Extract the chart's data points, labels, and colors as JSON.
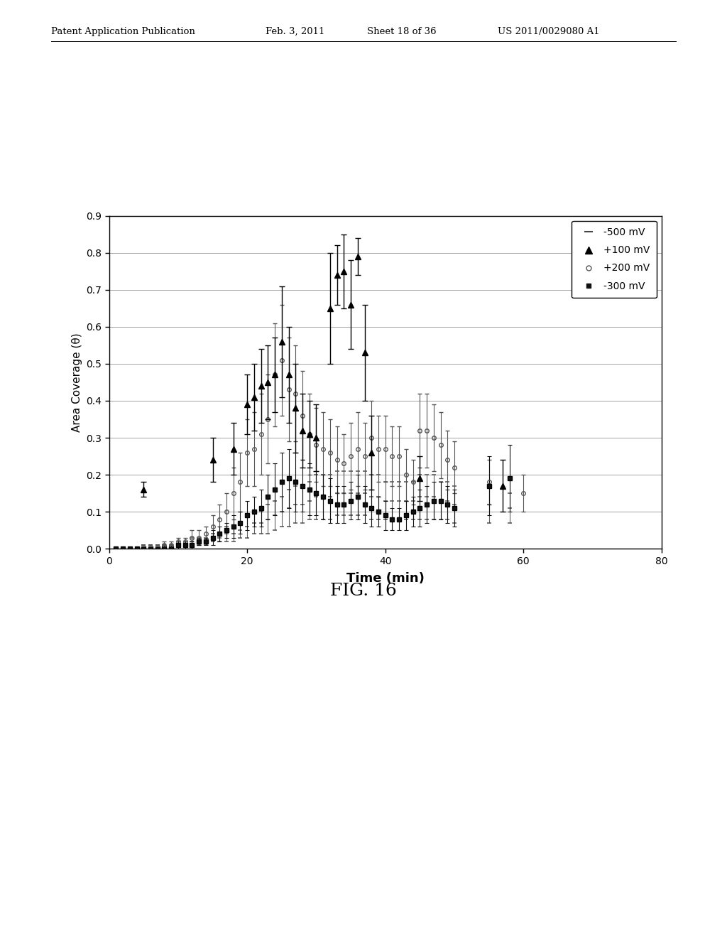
{
  "fig_label": "FIG. 16",
  "xlabel": "Time (min)",
  "ylabel": "Area Coverage (θ)",
  "xlim": [
    0,
    80
  ],
  "ylim": [
    0,
    0.9
  ],
  "yticks": [
    0,
    0.1,
    0.2,
    0.3,
    0.4,
    0.5,
    0.6,
    0.7,
    0.8,
    0.9
  ],
  "xticks": [
    0,
    20,
    40,
    60,
    80
  ],
  "background_color": "#ffffff",
  "header_left": "Patent Application Publication",
  "header_mid1": "Feb. 3, 2011",
  "header_mid2": "Sheet 18 of 36",
  "header_right": "US 2011/0029080 A1",
  "series_500mV": {
    "label": "-500 mV",
    "x": [
      1,
      2,
      3,
      4,
      5,
      6,
      7,
      8,
      9,
      10,
      11,
      12,
      13,
      14,
      15,
      16,
      17,
      18,
      19,
      20,
      21,
      22,
      23,
      24,
      25,
      26,
      27,
      28,
      29,
      30,
      31,
      32,
      33,
      34,
      35,
      36,
      37,
      38,
      39,
      40,
      41,
      42,
      43,
      44,
      45,
      46,
      47,
      48,
      49,
      50,
      55,
      58
    ],
    "y": [
      0.0,
      0.0,
      0.0,
      0.0,
      0.01,
      0.01,
      0.01,
      0.01,
      0.01,
      0.01,
      0.01,
      0.02,
      0.02,
      0.02,
      0.03,
      0.03,
      0.04,
      0.04,
      0.05,
      0.06,
      0.07,
      0.07,
      0.08,
      0.09,
      0.1,
      0.11,
      0.12,
      0.12,
      0.13,
      0.14,
      0.14,
      0.14,
      0.15,
      0.15,
      0.15,
      0.15,
      0.15,
      0.14,
      0.14,
      0.13,
      0.13,
      0.13,
      0.13,
      0.13,
      0.14,
      0.14,
      0.14,
      0.13,
      0.13,
      0.12,
      0.12,
      0.11
    ],
    "yerr": [
      0.0,
      0.0,
      0.0,
      0.0,
      0.0,
      0.0,
      0.0,
      0.0,
      0.0,
      0.0,
      0.0,
      0.01,
      0.01,
      0.01,
      0.01,
      0.01,
      0.02,
      0.02,
      0.02,
      0.03,
      0.03,
      0.03,
      0.04,
      0.04,
      0.04,
      0.05,
      0.05,
      0.05,
      0.05,
      0.06,
      0.06,
      0.06,
      0.06,
      0.06,
      0.06,
      0.06,
      0.06,
      0.06,
      0.06,
      0.05,
      0.05,
      0.05,
      0.05,
      0.05,
      0.06,
      0.06,
      0.06,
      0.05,
      0.05,
      0.05,
      0.05,
      0.04
    ]
  },
  "series_100mV": {
    "label": "+100 mV",
    "x": [
      5,
      15,
      18,
      20,
      21,
      22,
      23,
      24,
      25,
      26,
      27,
      28,
      29,
      30,
      32,
      33,
      34,
      35,
      36,
      37,
      38,
      45,
      57
    ],
    "y": [
      0.16,
      0.24,
      0.27,
      0.39,
      0.41,
      0.44,
      0.45,
      0.47,
      0.56,
      0.47,
      0.38,
      0.32,
      0.31,
      0.3,
      0.65,
      0.74,
      0.75,
      0.66,
      0.79,
      0.53,
      0.26,
      0.19,
      0.17
    ],
    "yerr": [
      0.02,
      0.06,
      0.07,
      0.08,
      0.09,
      0.1,
      0.1,
      0.1,
      0.15,
      0.13,
      0.12,
      0.1,
      0.09,
      0.09,
      0.15,
      0.08,
      0.1,
      0.12,
      0.05,
      0.13,
      0.1,
      0.06,
      0.07
    ]
  },
  "series_200mV": {
    "label": "+200 mV",
    "x": [
      2,
      3,
      4,
      5,
      6,
      7,
      8,
      9,
      10,
      11,
      12,
      13,
      14,
      15,
      16,
      17,
      18,
      19,
      20,
      21,
      22,
      23,
      24,
      25,
      26,
      27,
      28,
      29,
      30,
      31,
      32,
      33,
      34,
      35,
      36,
      37,
      38,
      39,
      40,
      41,
      42,
      43,
      44,
      45,
      46,
      47,
      48,
      49,
      50,
      55,
      60
    ],
    "y": [
      0.0,
      0.0,
      0.0,
      0.0,
      0.0,
      0.0,
      0.01,
      0.01,
      0.02,
      0.02,
      0.03,
      0.03,
      0.04,
      0.06,
      0.08,
      0.1,
      0.15,
      0.18,
      0.26,
      0.27,
      0.31,
      0.35,
      0.47,
      0.51,
      0.43,
      0.42,
      0.36,
      0.31,
      0.28,
      0.27,
      0.26,
      0.24,
      0.23,
      0.25,
      0.27,
      0.25,
      0.3,
      0.27,
      0.27,
      0.25,
      0.25,
      0.2,
      0.18,
      0.32,
      0.32,
      0.3,
      0.28,
      0.24,
      0.22,
      0.18,
      0.15
    ],
    "yerr": [
      0.0,
      0.0,
      0.0,
      0.0,
      0.0,
      0.0,
      0.01,
      0.01,
      0.01,
      0.01,
      0.02,
      0.02,
      0.02,
      0.03,
      0.04,
      0.05,
      0.07,
      0.08,
      0.09,
      0.1,
      0.11,
      0.12,
      0.14,
      0.15,
      0.14,
      0.13,
      0.12,
      0.11,
      0.1,
      0.1,
      0.09,
      0.09,
      0.08,
      0.09,
      0.1,
      0.09,
      0.1,
      0.09,
      0.09,
      0.08,
      0.08,
      0.07,
      0.06,
      0.1,
      0.1,
      0.09,
      0.09,
      0.08,
      0.07,
      0.06,
      0.05
    ]
  },
  "series_300mV": {
    "label": "-300 mV",
    "x": [
      1,
      2,
      3,
      4,
      5,
      6,
      7,
      8,
      9,
      10,
      11,
      12,
      13,
      14,
      15,
      16,
      17,
      18,
      19,
      20,
      21,
      22,
      23,
      24,
      25,
      26,
      27,
      28,
      29,
      30,
      31,
      32,
      33,
      34,
      35,
      36,
      37,
      38,
      39,
      40,
      41,
      42,
      43,
      44,
      45,
      46,
      47,
      48,
      49,
      50,
      55,
      58
    ],
    "y": [
      0.0,
      0.0,
      0.0,
      0.0,
      0.0,
      0.0,
      0.0,
      0.0,
      0.0,
      0.01,
      0.01,
      0.01,
      0.02,
      0.02,
      0.03,
      0.04,
      0.05,
      0.06,
      0.07,
      0.09,
      0.1,
      0.11,
      0.14,
      0.16,
      0.18,
      0.19,
      0.18,
      0.17,
      0.16,
      0.15,
      0.14,
      0.13,
      0.12,
      0.12,
      0.13,
      0.14,
      0.12,
      0.11,
      0.1,
      0.09,
      0.08,
      0.08,
      0.09,
      0.1,
      0.11,
      0.12,
      0.13,
      0.13,
      0.12,
      0.11,
      0.17,
      0.19
    ],
    "yerr": [
      0.0,
      0.0,
      0.0,
      0.0,
      0.0,
      0.0,
      0.0,
      0.0,
      0.0,
      0.01,
      0.01,
      0.01,
      0.01,
      0.01,
      0.02,
      0.02,
      0.02,
      0.03,
      0.03,
      0.04,
      0.04,
      0.05,
      0.06,
      0.07,
      0.08,
      0.08,
      0.08,
      0.07,
      0.07,
      0.06,
      0.06,
      0.06,
      0.05,
      0.05,
      0.05,
      0.06,
      0.05,
      0.05,
      0.04,
      0.04,
      0.03,
      0.03,
      0.04,
      0.04,
      0.05,
      0.05,
      0.05,
      0.05,
      0.05,
      0.05,
      0.08,
      0.09
    ]
  }
}
